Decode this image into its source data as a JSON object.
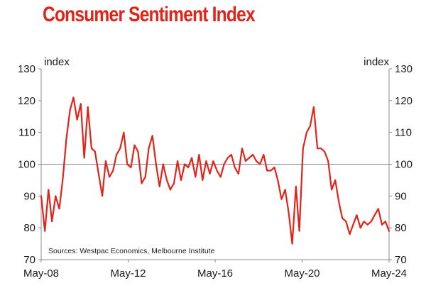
{
  "chart_data": {
    "type": "line",
    "title": "Consumer Sentiment Index",
    "ylabel_left": "index",
    "ylabel_right": "index",
    "ylim": [
      70,
      130
    ],
    "yticks": [
      70,
      80,
      90,
      100,
      110,
      120,
      130
    ],
    "reference_line": 100,
    "grid": false,
    "xticks": [
      "May-08",
      "May-12",
      "May-16",
      "May-20",
      "May-24"
    ],
    "x_start": 2008.33,
    "x_end": 2024.5,
    "source": "Sources: Westpac Economics, Melbourne Institute",
    "series": [
      {
        "name": "Consumer Sentiment Index",
        "color": "#e2231a",
        "x": [
          2008.33,
          2008.5,
          2008.67,
          2008.83,
          2009.0,
          2009.17,
          2009.33,
          2009.5,
          2009.67,
          2009.83,
          2010.0,
          2010.17,
          2010.33,
          2010.5,
          2010.67,
          2010.83,
          2011.0,
          2011.17,
          2011.33,
          2011.5,
          2011.67,
          2011.83,
          2012.0,
          2012.17,
          2012.33,
          2012.5,
          2012.67,
          2012.83,
          2013.0,
          2013.17,
          2013.33,
          2013.5,
          2013.67,
          2013.83,
          2014.0,
          2014.17,
          2014.33,
          2014.5,
          2014.67,
          2014.83,
          2015.0,
          2015.17,
          2015.33,
          2015.5,
          2015.67,
          2015.83,
          2016.0,
          2016.17,
          2016.33,
          2016.5,
          2016.67,
          2016.83,
          2017.0,
          2017.17,
          2017.33,
          2017.5,
          2017.67,
          2017.83,
          2018.0,
          2018.17,
          2018.33,
          2018.5,
          2018.67,
          2018.83,
          2019.0,
          2019.17,
          2019.33,
          2019.5,
          2019.67,
          2019.83,
          2020.0,
          2020.17,
          2020.33,
          2020.5,
          2020.67,
          2020.83,
          2021.0,
          2021.17,
          2021.33,
          2021.5,
          2021.67,
          2021.83,
          2022.0,
          2022.17,
          2022.33,
          2022.5,
          2022.67,
          2022.83,
          2023.0,
          2023.17,
          2023.33,
          2023.5,
          2023.67,
          2023.83,
          2024.0,
          2024.17,
          2024.33,
          2024.5
        ],
        "values": [
          90,
          79,
          92,
          82,
          90,
          86,
          95,
          108,
          117,
          121,
          114,
          119,
          102,
          118,
          105,
          104,
          97,
          90,
          101,
          96,
          98,
          103,
          105,
          110,
          100,
          99,
          106,
          104,
          94,
          96,
          105,
          109,
          100,
          93,
          100,
          95,
          92,
          94,
          101,
          95,
          100,
          99,
          102,
          96,
          103,
          95,
          101,
          97,
          101,
          98,
          96,
          100,
          102,
          103,
          99,
          97,
          105,
          101,
          102,
          103,
          101,
          100,
          103,
          98,
          98,
          99,
          95,
          89,
          92,
          85,
          75,
          93,
          79,
          105,
          110,
          112,
          118,
          105,
          105,
          104,
          101,
          92,
          95,
          88,
          83,
          82,
          78,
          81,
          84,
          80,
          82,
          81,
          82,
          84,
          86,
          81,
          82,
          79
        ]
      }
    ]
  }
}
